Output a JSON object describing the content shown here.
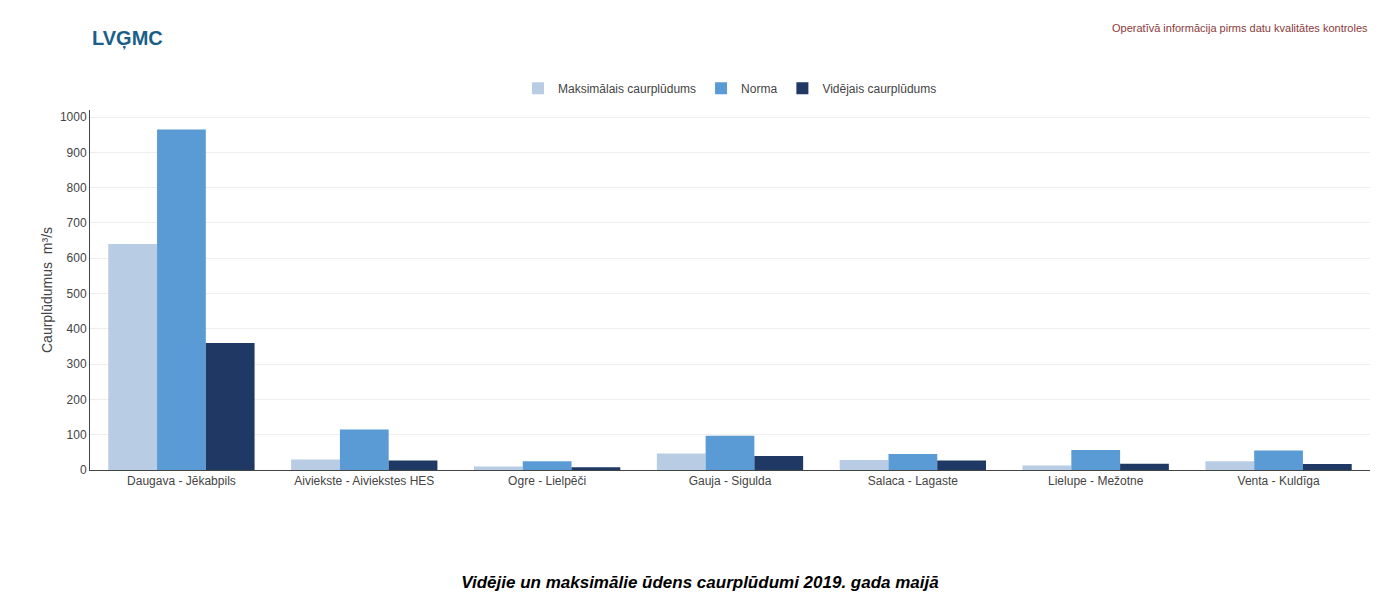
{
  "chart_data": {
    "type": "bar",
    "title": "Vidējie un maksimālie ūdens caurplūdumi 2019. gada maijā",
    "ylabel": "Caurplūdumus  m³/s",
    "annotations": [
      "Operatīvā informācija pirms datu kvalitātes kontroles",
      "LVG̦MC"
    ],
    "categories": [
      "Daugava - Jēkabpils",
      "Aiviekste - Aiviekstes HES",
      "Ogre - Lielpēči",
      "Gauja - Sigulda",
      "Salaca - Lagaste",
      "Lielupe - Mežotne",
      "Venta - Kuldīga"
    ],
    "series": [
      {
        "name": "Maksimālais caurplūdums",
        "color": "#b8cce4",
        "values": [
          640,
          30,
          10,
          47,
          28,
          13,
          25
        ]
      },
      {
        "name": "Norma",
        "color": "#5b9bd5",
        "values": [
          965,
          115,
          25,
          97,
          45,
          57,
          55
        ]
      },
      {
        "name": "Vidējais caurplūdums",
        "color": "#1f3864",
        "values": [
          360,
          27,
          8,
          40,
          27,
          18,
          17
        ]
      }
    ],
    "ylim": [
      0,
      1020
    ],
    "yticks": [
      0,
      100,
      200,
      300,
      400,
      500,
      600,
      700,
      800,
      900,
      1000
    ],
    "grid": true,
    "legend": "top"
  }
}
